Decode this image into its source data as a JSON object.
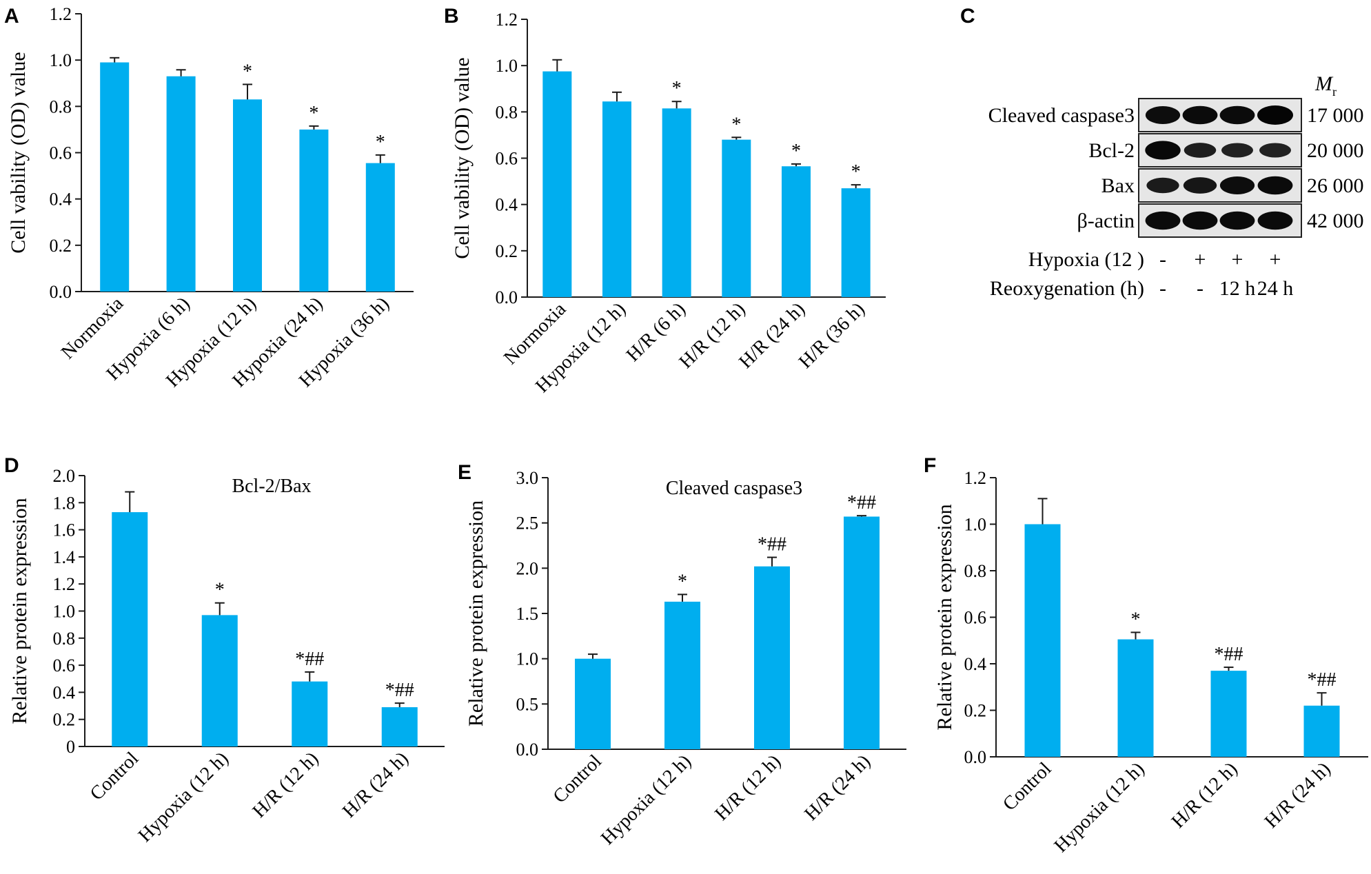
{
  "colors": {
    "bar": "#00aeef",
    "axis": "#1a1a1a"
  },
  "chart_data": [
    {
      "panel": "A",
      "type": "bar",
      "title": "",
      "xlabel": "",
      "ylabel": "Cell vability (OD) value",
      "ylim": [
        0,
        1.2
      ],
      "yticks": [
        "0.0",
        "0.2",
        "0.4",
        "0.6",
        "0.8",
        "1.0",
        "1.2"
      ],
      "categories": [
        "Normoxia",
        "Hypoxia (6 h)",
        "Hypoxia (12 h)",
        "Hypoxia (24 h)",
        "Hypoxia (36 h)"
      ],
      "values": [
        0.99,
        0.93,
        0.83,
        0.7,
        0.555
      ],
      "errors": [
        0.02,
        0.028,
        0.065,
        0.015,
        0.035
      ],
      "annotations": [
        "",
        "",
        "*",
        "*",
        "*"
      ]
    },
    {
      "panel": "B",
      "type": "bar",
      "title": "",
      "xlabel": "",
      "ylabel": "Cell vability (OD) value",
      "ylim": [
        0,
        1.2
      ],
      "yticks": [
        "0.0",
        "0.2",
        "0.4",
        "0.6",
        "0.8",
        "1.0",
        "1.2"
      ],
      "categories": [
        "Normoxia",
        "Hypoxia (12 h)",
        "H/R (6 h)",
        "H/R (12 h)",
        "H/R (24 h)",
        "H/R (36 h)"
      ],
      "values": [
        0.975,
        0.845,
        0.815,
        0.68,
        0.565,
        0.47
      ],
      "errors": [
        0.05,
        0.04,
        0.03,
        0.01,
        0.01,
        0.015
      ],
      "annotations": [
        "",
        "",
        "*",
        "*",
        "*",
        "*"
      ]
    },
    {
      "panel": "D",
      "type": "bar",
      "title": "Bcl-2/Bax",
      "xlabel": "",
      "ylabel": "Relative protein expression",
      "ylim": [
        0,
        2.0
      ],
      "yticks": [
        "0",
        "0.2",
        "0.4",
        "0.6",
        "0.8",
        "1.0",
        "1.2",
        "1.4",
        "1.6",
        "1.8",
        "2.0"
      ],
      "categories": [
        "Control",
        "Hypoxia (12 h)",
        "H/R (12 h)",
        "H/R (24 h)"
      ],
      "values": [
        1.73,
        0.97,
        0.48,
        0.29
      ],
      "errors": [
        0.15,
        0.09,
        0.07,
        0.03
      ],
      "annotations": [
        "",
        "*",
        "*##",
        "*##"
      ]
    },
    {
      "panel": "E",
      "type": "bar",
      "title": "Cleaved caspase3",
      "xlabel": "",
      "ylabel": "Relative protein expression",
      "ylim": [
        0,
        3.0
      ],
      "yticks": [
        "0.0",
        "0.5",
        "1.0",
        "1.5",
        "2.0",
        "2.5",
        "3.0"
      ],
      "categories": [
        "Control",
        "Hypoxia (12 h)",
        "H/R (12 h)",
        "H/R (24 h)"
      ],
      "values": [
        1.0,
        1.63,
        2.02,
        2.57
      ],
      "errors": [
        0.05,
        0.08,
        0.1,
        0.01
      ],
      "annotations": [
        "",
        "*",
        "*##",
        "*##"
      ]
    },
    {
      "panel": "F",
      "type": "bar",
      "title": "",
      "xlabel": "",
      "ylabel": "Relative protein expression",
      "ylim": [
        0,
        1.2
      ],
      "yticks": [
        "0.0",
        "0.2",
        "0.4",
        "0.6",
        "0.8",
        "1.0",
        "1.2"
      ],
      "categories": [
        "Control",
        "Hypoxia (12 h)",
        "H/R (12 h)",
        "H/R (24 h)"
      ],
      "values": [
        1.0,
        0.505,
        0.37,
        0.22
      ],
      "errors": [
        0.11,
        0.03,
        0.015,
        0.055
      ],
      "annotations": [
        "",
        "*",
        "*##",
        "*##"
      ]
    }
  ],
  "blot": {
    "panel": "C",
    "mr_label": "M",
    "mr_sub": "r",
    "rows": [
      {
        "label": "Cleaved caspase3",
        "mr": "17 000",
        "intensity": [
          0.85,
          0.9,
          0.9,
          1.0
        ]
      },
      {
        "label": "Bcl-2",
        "mr": "20 000",
        "intensity": [
          0.95,
          0.55,
          0.5,
          0.5
        ]
      },
      {
        "label": "Bax",
        "mr": "26 000",
        "intensity": [
          0.6,
          0.7,
          0.85,
          0.9
        ]
      },
      {
        "label": "β-actin",
        "mr": "42 000",
        "intensity": [
          0.9,
          0.9,
          0.9,
          0.9
        ]
      }
    ],
    "conditions": [
      {
        "label": "Hypoxia (12 )",
        "values": [
          "-",
          "+",
          "+",
          "+"
        ]
      },
      {
        "label": "Reoxygenation (h)",
        "values": [
          "-",
          "-",
          "12 h",
          "24 h"
        ]
      }
    ]
  }
}
